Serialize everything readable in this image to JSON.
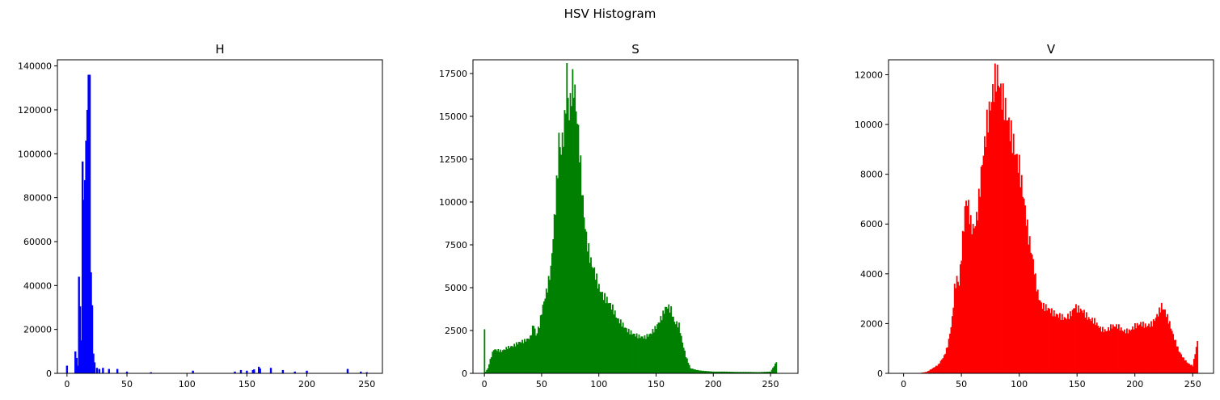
{
  "suptitle": "HSV Histogram",
  "chart_data": [
    {
      "type": "bar",
      "title": "H",
      "color": "#0000ff",
      "xlabel": "",
      "ylabel": "",
      "xlim": [
        -8,
        263
      ],
      "ylim": [
        0,
        142800
      ],
      "xticks": [
        0,
        50,
        100,
        150,
        200,
        250
      ],
      "yticks": [
        0,
        20000,
        40000,
        60000,
        80000,
        100000,
        120000,
        140000
      ],
      "points": [
        [
          0,
          3500
        ],
        [
          7,
          10000
        ],
        [
          8,
          7000
        ],
        [
          9,
          3500
        ],
        [
          10,
          44000
        ],
        [
          11,
          30500
        ],
        [
          12,
          15000
        ],
        [
          13,
          96500
        ],
        [
          14,
          79000
        ],
        [
          15,
          88000
        ],
        [
          16,
          106000
        ],
        [
          17,
          120000
        ],
        [
          18,
          136000
        ],
        [
          19,
          136000
        ],
        [
          20,
          46000
        ],
        [
          21,
          31000
        ],
        [
          22,
          9000
        ],
        [
          23,
          5000
        ],
        [
          25,
          2500
        ],
        [
          27,
          2000
        ],
        [
          30,
          2500
        ],
        [
          35,
          2000
        ],
        [
          42,
          2000
        ],
        [
          50,
          800
        ],
        [
          70,
          500
        ],
        [
          105,
          1200
        ],
        [
          140,
          800
        ],
        [
          145,
          1500
        ],
        [
          150,
          1200
        ],
        [
          155,
          1500
        ],
        [
          156,
          1800
        ],
        [
          160,
          3000
        ],
        [
          161,
          2200
        ],
        [
          170,
          2500
        ],
        [
          180,
          1500
        ],
        [
          190,
          800
        ],
        [
          200,
          1200
        ],
        [
          234,
          2000
        ],
        [
          245,
          800
        ],
        [
          250,
          500
        ]
      ],
      "grid": false,
      "legend": "none"
    },
    {
      "type": "bar",
      "title": "S",
      "color": "#008000",
      "xlabel": "",
      "ylabel": "",
      "xlim": [
        -10,
        274
      ],
      "ylim": [
        0,
        18300
      ],
      "xticks": [
        0,
        50,
        100,
        150,
        200,
        250
      ],
      "yticks": [
        0,
        2500,
        5000,
        7500,
        10000,
        12500,
        15000,
        17500
      ],
      "points": [
        [
          0,
          2450
        ],
        [
          1,
          100
        ],
        [
          3,
          300
        ],
        [
          5,
          800
        ],
        [
          8,
          1400
        ],
        [
          15,
          1300
        ],
        [
          20,
          1500
        ],
        [
          25,
          1600
        ],
        [
          30,
          1800
        ],
        [
          35,
          1900
        ],
        [
          40,
          2100
        ],
        [
          43,
          2900
        ],
        [
          45,
          2200
        ],
        [
          48,
          2800
        ],
        [
          50,
          3600
        ],
        [
          52,
          4200
        ],
        [
          55,
          5000
        ],
        [
          58,
          6100
        ],
        [
          60,
          8000
        ],
        [
          62,
          9800
        ],
        [
          64,
          12000
        ],
        [
          65,
          13600
        ],
        [
          67,
          13000
        ],
        [
          70,
          14500
        ],
        [
          72,
          17500
        ],
        [
          74,
          15000
        ],
        [
          76,
          16500
        ],
        [
          78,
          17000
        ],
        [
          80,
          15500
        ],
        [
          82,
          14000
        ],
        [
          84,
          12000
        ],
        [
          86,
          10000
        ],
        [
          88,
          8500
        ],
        [
          90,
          7500
        ],
        [
          93,
          6500
        ],
        [
          96,
          6000
        ],
        [
          100,
          5000
        ],
        [
          104,
          4500
        ],
        [
          108,
          4200
        ],
        [
          112,
          3800
        ],
        [
          116,
          3200
        ],
        [
          120,
          2900
        ],
        [
          125,
          2500
        ],
        [
          130,
          2300
        ],
        [
          135,
          2150
        ],
        [
          140,
          2100
        ],
        [
          145,
          2300
        ],
        [
          150,
          2700
        ],
        [
          155,
          3300
        ],
        [
          158,
          3800
        ],
        [
          160,
          3900
        ],
        [
          163,
          3700
        ],
        [
          166,
          3000
        ],
        [
          170,
          2800
        ],
        [
          173,
          1800
        ],
        [
          176,
          1000
        ],
        [
          180,
          300
        ],
        [
          185,
          200
        ],
        [
          190,
          150
        ],
        [
          200,
          100
        ],
        [
          210,
          100
        ],
        [
          220,
          80
        ],
        [
          230,
          80
        ],
        [
          240,
          70
        ],
        [
          250,
          100
        ],
        [
          255,
          650
        ]
      ],
      "grid": false,
      "legend": "none"
    },
    {
      "type": "bar",
      "title": "V",
      "color": "#ff0000",
      "xlabel": "",
      "ylabel": "",
      "xlim": [
        -13,
        268
      ],
      "ylim": [
        0,
        12600
      ],
      "xticks": [
        0,
        50,
        100,
        150,
        200,
        250
      ],
      "yticks": [
        0,
        2000,
        4000,
        6000,
        8000,
        10000,
        12000
      ],
      "points": [
        [
          15,
          20
        ],
        [
          20,
          60
        ],
        [
          25,
          200
        ],
        [
          30,
          350
        ],
        [
          35,
          700
        ],
        [
          38,
          1100
        ],
        [
          40,
          1600
        ],
        [
          42,
          2200
        ],
        [
          44,
          3400
        ],
        [
          46,
          3800
        ],
        [
          48,
          3600
        ],
        [
          50,
          4800
        ],
        [
          52,
          6000
        ],
        [
          54,
          7000
        ],
        [
          56,
          6700
        ],
        [
          58,
          6000
        ],
        [
          60,
          5800
        ],
        [
          62,
          6000
        ],
        [
          64,
          6500
        ],
        [
          66,
          7500
        ],
        [
          68,
          8500
        ],
        [
          70,
          9200
        ],
        [
          72,
          10000
        ],
        [
          74,
          10500
        ],
        [
          76,
          11000
        ],
        [
          78,
          11500
        ],
        [
          80,
          12000
        ],
        [
          82,
          11800
        ],
        [
          84,
          11300
        ],
        [
          86,
          11000
        ],
        [
          88,
          10600
        ],
        [
          90,
          10200
        ],
        [
          92,
          9800
        ],
        [
          94,
          9400
        ],
        [
          96,
          9000
        ],
        [
          98,
          8600
        ],
        [
          100,
          8300
        ],
        [
          102,
          7600
        ],
        [
          104,
          7000
        ],
        [
          106,
          6200
        ],
        [
          108,
          5500
        ],
        [
          110,
          5000
        ],
        [
          112,
          4500
        ],
        [
          114,
          3800
        ],
        [
          116,
          3200
        ],
        [
          118,
          2900
        ],
        [
          120,
          2700
        ],
        [
          125,
          2600
        ],
        [
          130,
          2400
        ],
        [
          135,
          2300
        ],
        [
          140,
          2200
        ],
        [
          145,
          2400
        ],
        [
          148,
          2700
        ],
        [
          150,
          2600
        ],
        [
          155,
          2500
        ],
        [
          160,
          2200
        ],
        [
          165,
          2100
        ],
        [
          170,
          1800
        ],
        [
          175,
          1700
        ],
        [
          180,
          1900
        ],
        [
          185,
          1900
        ],
        [
          190,
          1700
        ],
        [
          195,
          1700
        ],
        [
          200,
          1900
        ],
        [
          205,
          2000
        ],
        [
          210,
          1900
        ],
        [
          215,
          2000
        ],
        [
          220,
          2400
        ],
        [
          223,
          2700
        ],
        [
          226,
          2500
        ],
        [
          230,
          2000
        ],
        [
          234,
          1400
        ],
        [
          238,
          900
        ],
        [
          242,
          600
        ],
        [
          246,
          400
        ],
        [
          250,
          300
        ],
        [
          254,
          1300
        ]
      ],
      "grid": false,
      "legend": "none"
    }
  ]
}
